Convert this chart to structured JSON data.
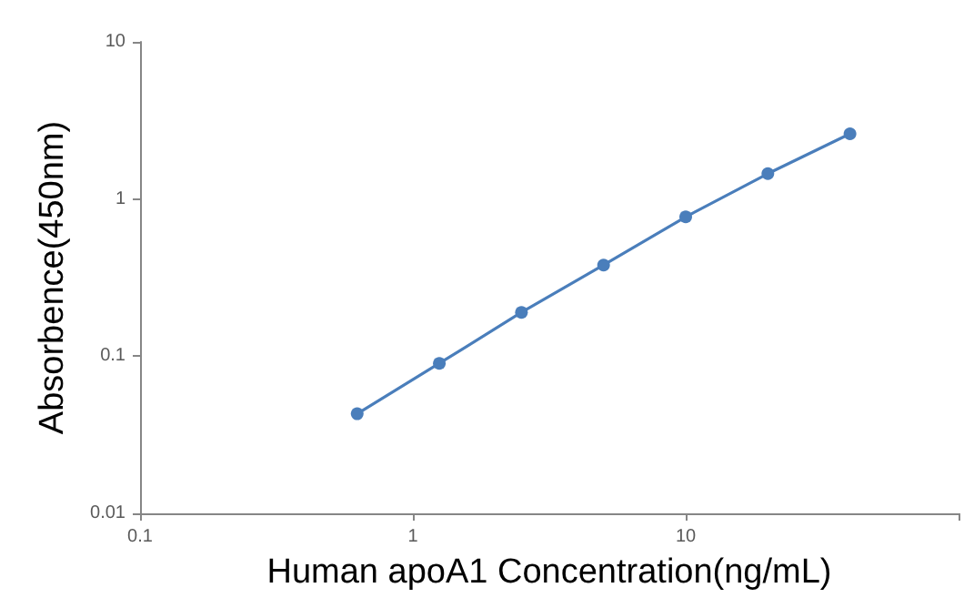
{
  "chart_data": {
    "type": "line",
    "xlabel": "Human apoA1 Concentration(ng/mL)",
    "ylabel": "Absorbence(450nm)",
    "x": [
      0.625,
      1.25,
      2.5,
      5,
      10,
      20,
      40
    ],
    "series": [
      {
        "color": "#4a7ebb",
        "values": [
          0.043,
          0.09,
          0.19,
          0.38,
          0.77,
          1.45,
          2.6
        ]
      }
    ],
    "log": "xy",
    "xlim": [
      0.1,
      100
    ],
    "xticks": [
      0.1,
      1,
      10,
      {
        "value": 100,
        "label": null
      }
    ],
    "ylim": [
      0.01,
      10
    ],
    "yticks": [
      0.01,
      0.1,
      1,
      10
    ],
    "grid": false,
    "marker": "circle",
    "line_style": "solid"
  }
}
